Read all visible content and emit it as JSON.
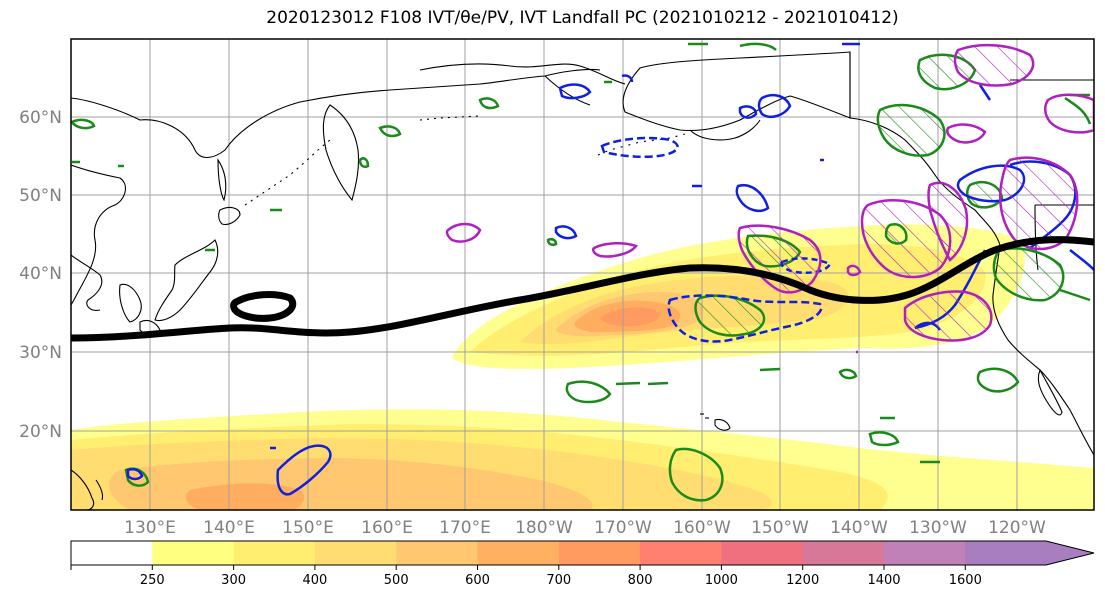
{
  "title": "2020123012 F108 IVT/θe/PV, IVT Landfall PC (2021010212 - 2021010412)",
  "map": {
    "lat_labels": [
      "60°N",
      "50°N",
      "40°N",
      "30°N",
      "20°N"
    ],
    "lon_labels": [
      "130°E",
      "140°E",
      "150°E",
      "160°E",
      "170°E",
      "180°W",
      "170°W",
      "160°W",
      "150°W",
      "140°W",
      "130°W",
      "120°W"
    ]
  },
  "colorbar": {
    "tick_labels": [
      "250",
      "300",
      "400",
      "500",
      "600",
      "700",
      "800",
      "1000",
      "1200",
      "1400",
      "1600"
    ],
    "colors": [
      "#ffffff",
      "#ffff80",
      "#ffee70",
      "#ffdd70",
      "#ffc870",
      "#ffb060",
      "#ff9a60",
      "#ff8070",
      "#f07080",
      "#d87898",
      "#c080b8",
      "#a87ec0"
    ]
  }
}
